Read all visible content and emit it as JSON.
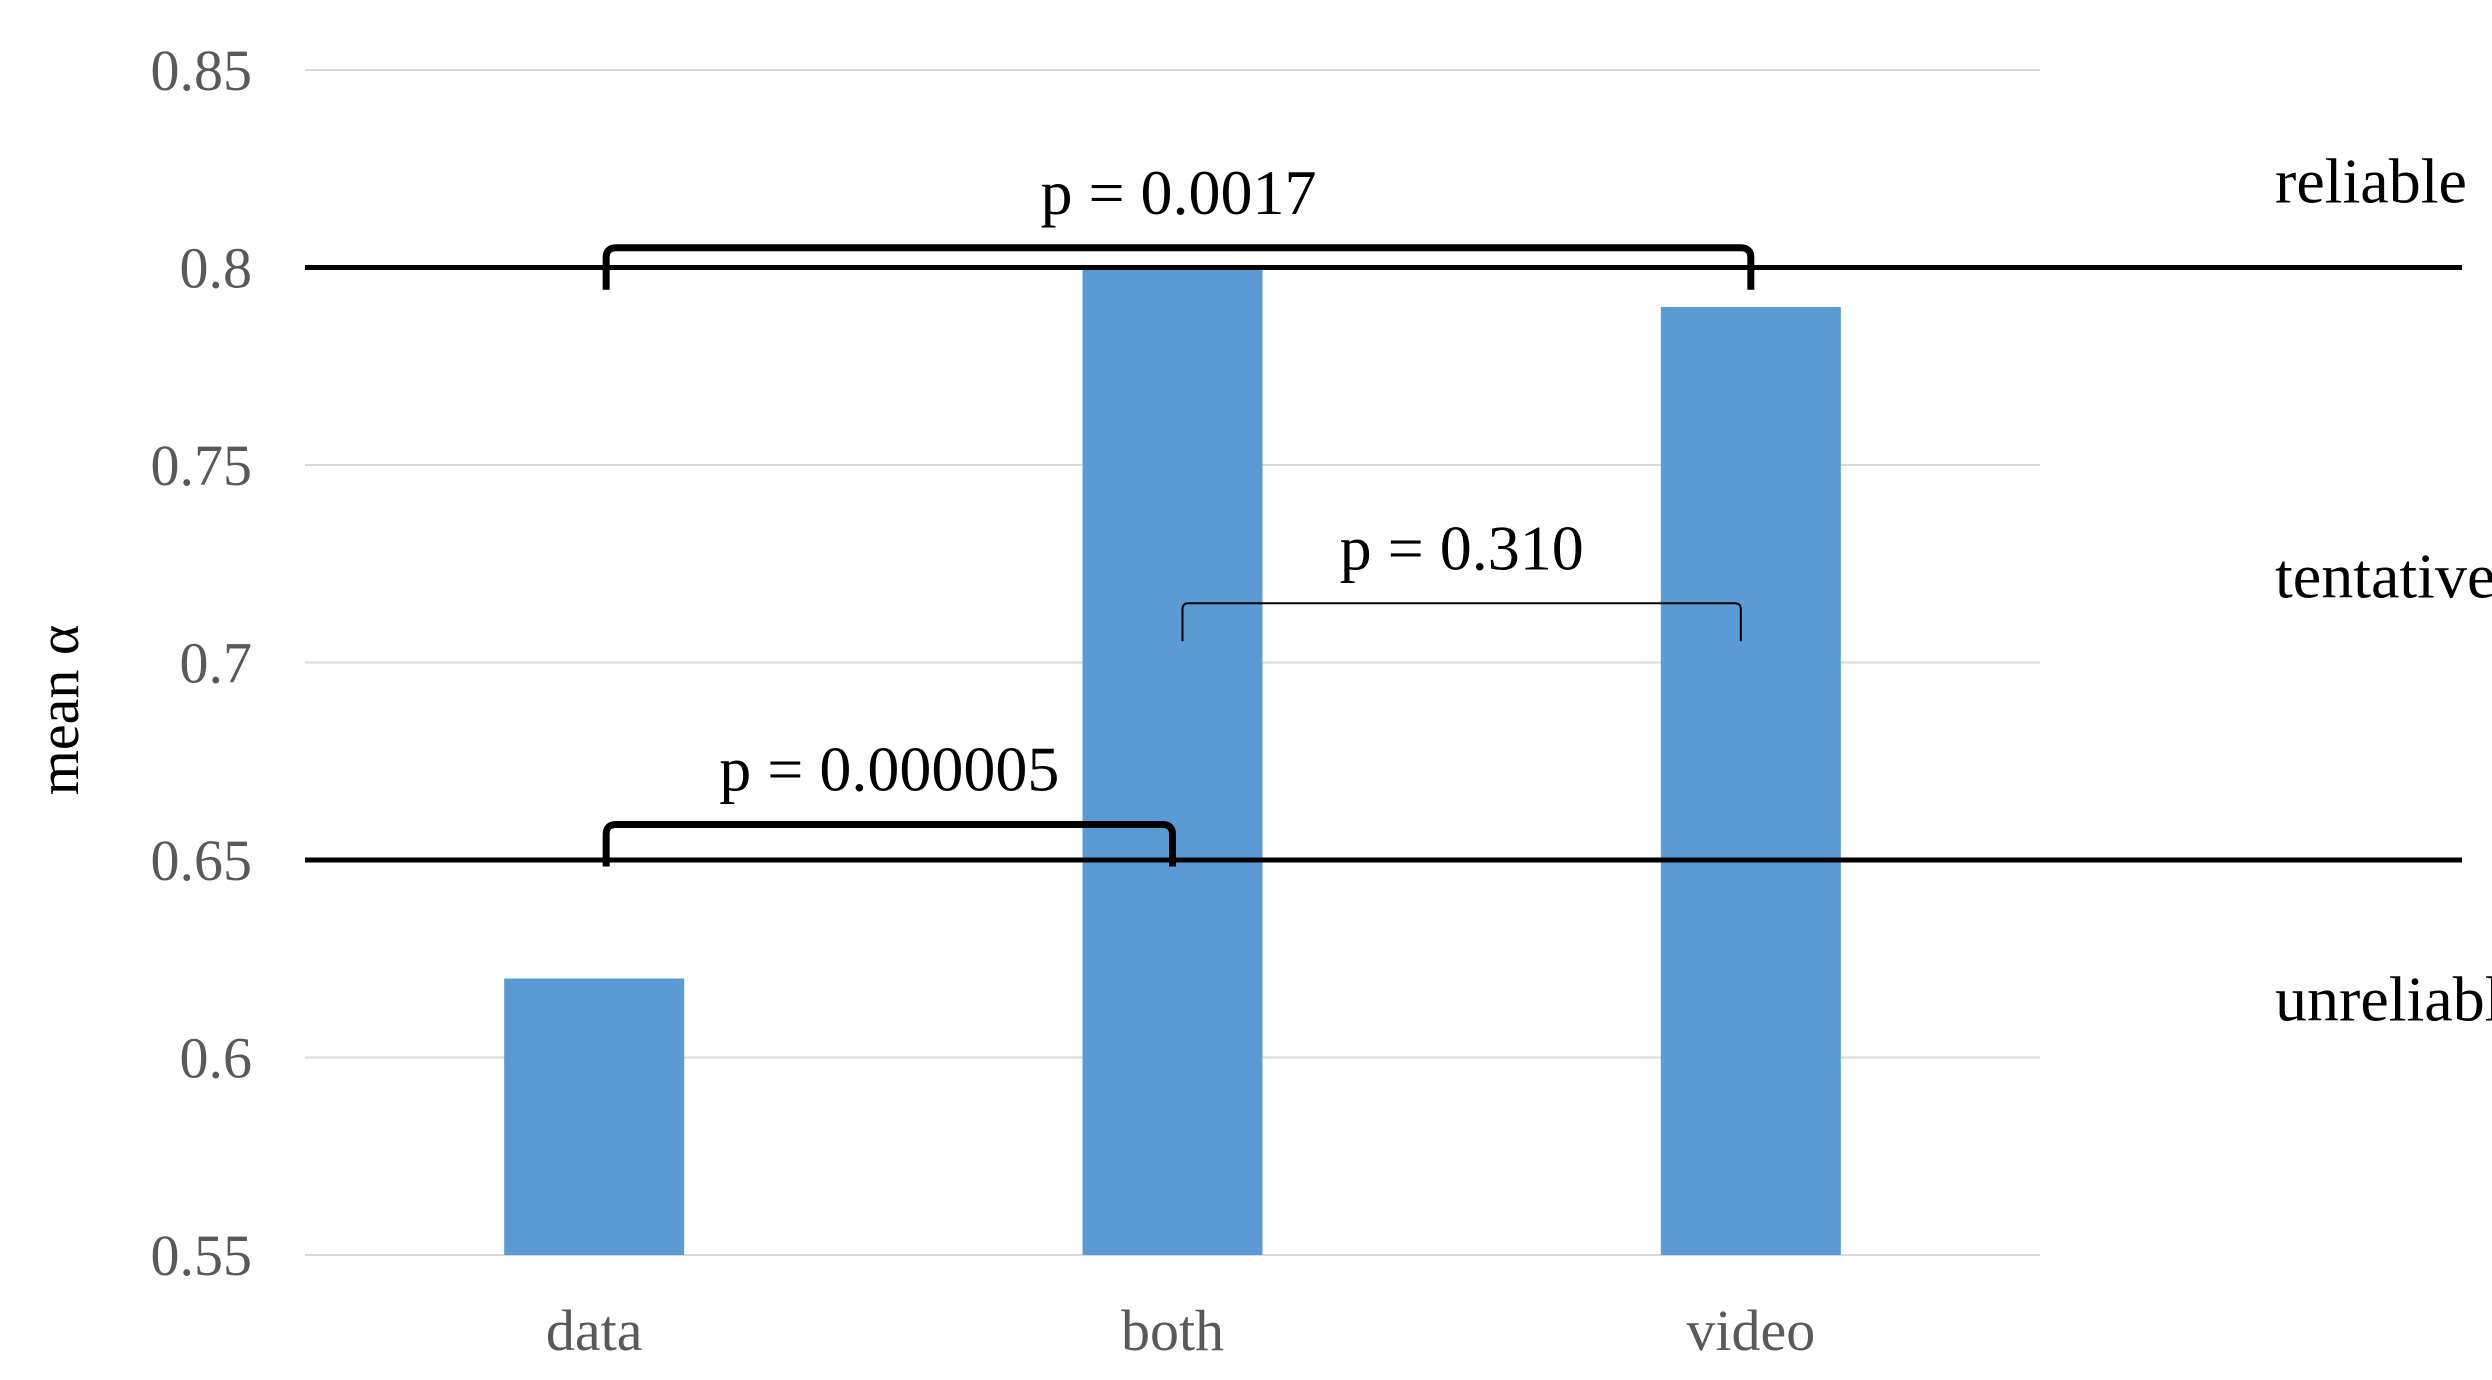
{
  "chart_data": {
    "type": "bar",
    "categories": [
      "data",
      "both",
      "video"
    ],
    "values": [
      0.62,
      0.8,
      0.79
    ],
    "ylabel": "mean α",
    "ylim": [
      0.55,
      0.85
    ],
    "yticks": [
      "0.55",
      "0.6",
      "0.65",
      "0.7",
      "0.75",
      "0.8",
      "0.85"
    ],
    "grid": true,
    "bar_color": "#5b9bd5",
    "thresholds": [
      0.65,
      0.8
    ],
    "zones": [
      {
        "label": "reliable",
        "y": 0.822
      },
      {
        "label": "tentative",
        "y": 0.722
      },
      {
        "label": "unreliable",
        "y": 0.615
      }
    ],
    "comparisons": [
      {
        "label": "p = 0.0017",
        "from": "data",
        "to": "video",
        "y": 0.805,
        "weight": "bold"
      },
      {
        "label": "p = 0.310",
        "from": "both",
        "to": "video",
        "y": 0.715,
        "weight": "thin"
      },
      {
        "label": "p = 0.000005",
        "from": "data",
        "to": "both",
        "y": 0.659,
        "weight": "bold"
      }
    ]
  }
}
